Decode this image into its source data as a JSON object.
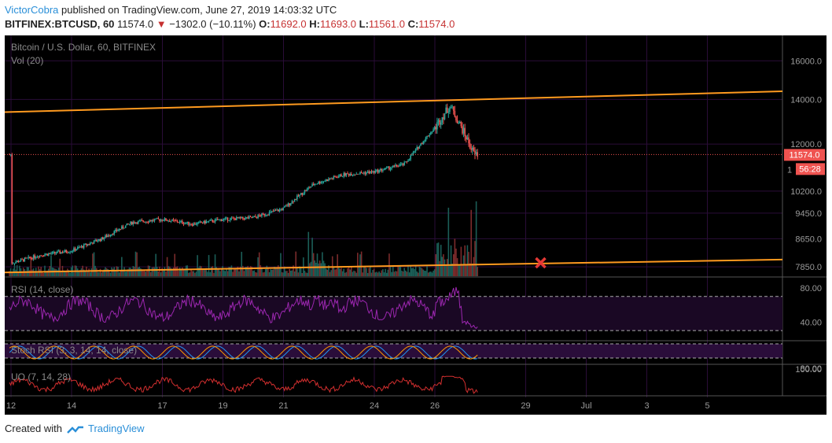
{
  "header": {
    "author": "VictorCobra",
    "published": "published on TradingView.com, June 27, 2019 14:03:32 UTC",
    "symbol": "BITFINEX:BTCUSD, 60",
    "last": "11574.0",
    "change": "−1302.0 (−10.11%)",
    "o_label": "O:",
    "o": "11692.0",
    "h_label": "H:",
    "h": "11693.0",
    "l_label": "L:",
    "l": "11561.0",
    "c_label": "C:",
    "c": "11574.0"
  },
  "footer": {
    "created_with": "Created with",
    "brand": "TradingView"
  },
  "colors": {
    "background": "#000000",
    "grid": "#2a0d38",
    "up": "#26a69a",
    "down": "#ef5350",
    "trendline": "#ff9a1f",
    "rsi": "#9c27b0",
    "uo": "#d32f2f",
    "stoch_k": "#2196f3",
    "stoch_d": "#ff9800",
    "last_price_tag": "#ef5350",
    "marker": "#e53935"
  },
  "chart_data": [
    {
      "type": "candlestick",
      "title": "Bitcoin / U.S. Dollar, 60, BITFINEX",
      "volume_label": "Vol (20)",
      "scale": "log",
      "y_ticks": [
        "16000.0",
        "14000.0",
        "12000.0",
        "10200.0",
        "9450.0",
        "8650.0",
        "7850.0"
      ],
      "y_tick_values": [
        16000,
        14000,
        12000,
        10200,
        9450,
        8650,
        7850
      ],
      "last_price_tag": "11574.0",
      "countdown_tag": "56:28",
      "partial_tick": "1",
      "x_ticks": [
        "12",
        "14",
        "17",
        "19",
        "21",
        "24",
        "26",
        "29",
        "Jul",
        "3",
        "5"
      ],
      "price_path": [
        {
          "x": "Jun 12",
          "y": 7950
        },
        {
          "x": "Jun 13",
          "y": 8180
        },
        {
          "x": "Jun 14",
          "y": 8300
        },
        {
          "x": "Jun 15",
          "y": 8650
        },
        {
          "x": "Jun 16",
          "y": 9150
        },
        {
          "x": "Jun 17",
          "y": 9250
        },
        {
          "x": "Jun 18",
          "y": 9100
        },
        {
          "x": "Jun 19",
          "y": 9250
        },
        {
          "x": "Jun 20",
          "y": 9300
        },
        {
          "x": "Jun 21",
          "y": 9600
        },
        {
          "x": "Jun 22",
          "y": 10450
        },
        {
          "x": "Jun 23",
          "y": 10800
        },
        {
          "x": "Jun 24",
          "y": 10900
        },
        {
          "x": "Jun 25",
          "y": 11200
        },
        {
          "x": "Jun 26",
          "y": 12700
        },
        {
          "x": "Jun 26 (high)",
          "y": 13700
        },
        {
          "x": "Jun 27",
          "y": 11574
        }
      ],
      "trendlines": [
        {
          "name": "upper",
          "from": {
            "x": "Jun 12",
            "y": 13400
          },
          "to": {
            "x": "Jul 6",
            "y": 14400
          }
        },
        {
          "name": "lower",
          "from": {
            "x": "Jun 12",
            "y": 7700
          },
          "to": {
            "x": "Jul 6",
            "y": 8050
          }
        }
      ],
      "annotation": {
        "type": "x-marker",
        "x": "Jun 29"
      }
    },
    {
      "type": "line",
      "title": "RSI (14, close)",
      "y_ticks": [
        "80.00",
        "40.00"
      ],
      "y_tick_values": [
        80,
        40
      ],
      "bands": [
        70,
        30
      ],
      "last_value": 38
    },
    {
      "type": "line",
      "title": "Stoch RSI (3, 3, 14, 14, close)",
      "y_ticks": [
        "100.00"
      ],
      "series": [
        {
          "color": "#2196f3"
        },
        {
          "color": "#ff9800"
        }
      ]
    },
    {
      "type": "line",
      "title": "UO (7, 14, 28)",
      "y_ticks": [
        "80.00"
      ]
    }
  ]
}
